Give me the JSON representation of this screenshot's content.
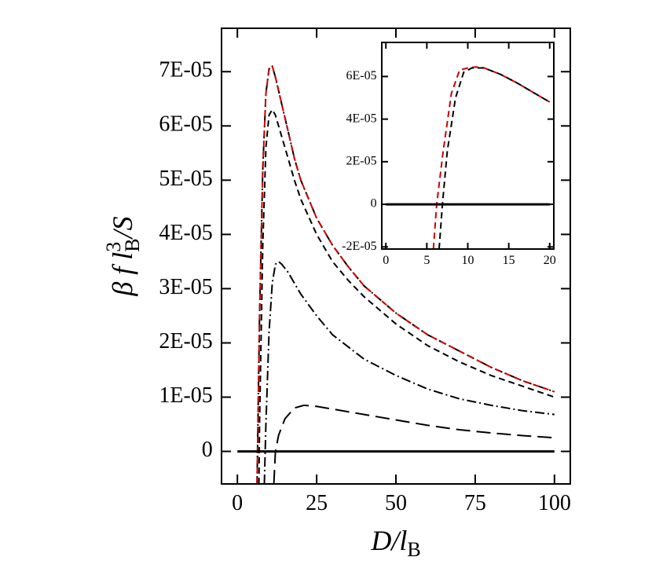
{
  "chart_data": [
    {
      "type": "line",
      "x_label": {
        "main": "D/l",
        "sub": "B"
      },
      "y_label": {
        "main": "β f l",
        "sup": "3",
        "sub": "B",
        "end": "/S"
      },
      "xlim": [
        -5,
        105
      ],
      "xticks": [
        0,
        25,
        50,
        75,
        100
      ],
      "ylim": [
        -6e-06,
        7.8e-05
      ],
      "yticks": [
        0,
        {
          "value": 1e-05,
          "label": "1E-05"
        },
        {
          "value": 2e-05,
          "label": "2E-05"
        },
        {
          "value": 3e-05,
          "label": "3E-05"
        },
        {
          "value": 4e-05,
          "label": "4E-05"
        },
        {
          "value": 5e-05,
          "label": "5E-05"
        },
        {
          "value": 6e-05,
          "label": "6E-05"
        },
        {
          "value": 7e-05,
          "label": "7E-05"
        }
      ],
      "series": [
        {
          "color": "#000000",
          "dash": "10,4,2,4",
          "x": [
            6.2,
            7,
            8,
            9,
            10,
            11,
            12,
            14,
            16,
            18,
            20,
            25,
            30,
            35,
            40,
            50,
            60,
            70,
            80,
            90,
            100
          ],
          "values": [
            -6e-06,
            2.5e-05,
            5.2e-05,
            6.6e-05,
            7.05e-05,
            7.1e-05,
            6.9e-05,
            6.4e-05,
            5.9e-05,
            5.4e-05,
            5e-05,
            4.3e-05,
            3.8e-05,
            3.4e-05,
            3.05e-05,
            2.55e-05,
            2.15e-05,
            1.85e-05,
            1.55e-05,
            1.3e-05,
            1.1e-05
          ]
        },
        {
          "color": "#cc0000",
          "dash": "8,5",
          "x": [
            6.2,
            7,
            8,
            9,
            10,
            11,
            12,
            14,
            16,
            18,
            20,
            25,
            30,
            35,
            40,
            50,
            60,
            70,
            80,
            90,
            100
          ],
          "values": [
            -6e-06,
            2.5e-05,
            5.2e-05,
            6.6e-05,
            7.05e-05,
            7.1e-05,
            6.9e-05,
            6.4e-05,
            5.9e-05,
            5.4e-05,
            5e-05,
            4.3e-05,
            3.8e-05,
            3.4e-05,
            3.05e-05,
            2.55e-05,
            2.15e-05,
            1.85e-05,
            1.55e-05,
            1.3e-05,
            1.1e-05
          ]
        },
        {
          "color": "#000000",
          "dash": "8,5",
          "x": [
            6.8,
            7,
            8,
            9,
            10,
            11,
            12,
            14,
            16,
            18,
            20,
            25,
            30,
            35,
            40,
            50,
            60,
            70,
            80,
            90,
            100
          ],
          "values": [
            -6e-06,
            5e-06,
            3.8e-05,
            5.6e-05,
            6.2e-05,
            6.3e-05,
            6.2e-05,
            5.8e-05,
            5.4e-05,
            5e-05,
            4.65e-05,
            4e-05,
            3.5e-05,
            3.15e-05,
            2.85e-05,
            2.35e-05,
            1.95e-05,
            1.65e-05,
            1.4e-05,
            1.2e-05,
            1e-05
          ]
        },
        {
          "color": "#000000",
          "dash": "12,4,2,4",
          "x": [
            8.5,
            9,
            10,
            11,
            12,
            13,
            14,
            16,
            18,
            20,
            25,
            30,
            40,
            50,
            60,
            70,
            80,
            90,
            100
          ],
          "values": [
            -6e-06,
            5e-06,
            2.2e-05,
            3.1e-05,
            3.45e-05,
            3.5e-05,
            3.45e-05,
            3.3e-05,
            3.1e-05,
            2.9e-05,
            2.5e-05,
            2.15e-05,
            1.7e-05,
            1.4e-05,
            1.15e-05,
            9.7e-06,
            8.5e-06,
            7.5e-06,
            6.8e-06
          ]
        },
        {
          "color": "#000000",
          "dash": "18,8",
          "x": [
            11.5,
            12,
            13,
            15,
            18,
            21,
            25,
            30,
            40,
            50,
            60,
            70,
            80,
            90,
            100
          ],
          "values": [
            -6e-06,
            0,
            3e-06,
            6e-06,
            8e-06,
            8.5e-06,
            8.3e-06,
            7.8e-06,
            6.8e-06,
            5.8e-06,
            4.8e-06,
            4e-06,
            3.4e-06,
            2.9e-06,
            2.5e-06
          ]
        },
        {
          "color": "#000000",
          "dash": "none",
          "width": 3,
          "x": [
            0,
            100
          ],
          "values": [
            0,
            0
          ]
        }
      ]
    },
    {
      "type": "line",
      "xlim": [
        -0.5,
        20.5
      ],
      "xticks": [
        0,
        5,
        10,
        15,
        20
      ],
      "ylim": [
        -2.1e-05,
        7.6e-05
      ],
      "yticks": [
        {
          "value": -2e-05,
          "label": "-2E-05"
        },
        0,
        {
          "value": 2e-05,
          "label": "2E-05"
        },
        {
          "value": 4e-05,
          "label": "4E-05"
        },
        {
          "value": 6e-05,
          "label": "6E-05"
        }
      ],
      "series": [
        {
          "color": "#cc0000",
          "dash": "8,5",
          "x": [
            5.8,
            6.2,
            7,
            8,
            9,
            10,
            11,
            12,
            14,
            16,
            18,
            20
          ],
          "values": [
            -2.1e-05,
            0,
            2.5e-05,
            5.2e-05,
            6.3e-05,
            6.4e-05,
            6.45e-05,
            6.4e-05,
            6.1e-05,
            5.7e-05,
            5.25e-05,
            4.8e-05
          ]
        },
        {
          "color": "#000000",
          "dash": "8,5",
          "x": [
            6.5,
            6.9,
            7.5,
            8.5,
            9.5,
            10.5,
            12,
            14,
            16,
            18,
            20
          ],
          "values": [
            -2.1e-05,
            0,
            2.5e-05,
            5e-05,
            6.2e-05,
            6.4e-05,
            6.4e-05,
            6.1e-05,
            5.7e-05,
            5.25e-05,
            4.8e-05
          ]
        },
        {
          "color": "#000000",
          "dash": "none",
          "width": 3,
          "x": [
            0,
            20
          ],
          "values": [
            0,
            0
          ]
        }
      ]
    }
  ]
}
